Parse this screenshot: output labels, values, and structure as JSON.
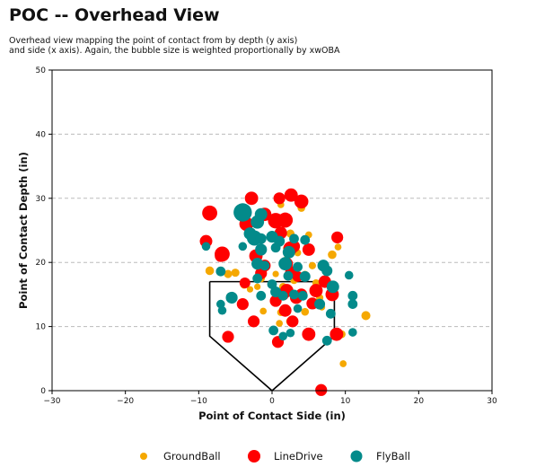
{
  "chart_data": {
    "type": "scatter",
    "title": "POC -- Overhead View",
    "subtitle_line1": "Overhead view mapping the point of contact from by depth (y axis)",
    "subtitle_line2": "and side (x axis). Again, the bubble size is weighted proportionally by xwOBA",
    "xlabel": "Point of Contact Side (in)",
    "ylabel": "Point of Contact Depth (in)",
    "xlim": [
      -30,
      30
    ],
    "ylim": [
      0,
      50
    ],
    "xticks": [
      -30,
      -20,
      -10,
      0,
      10,
      20,
      30
    ],
    "yticks": [
      0,
      10,
      20,
      30,
      40,
      50
    ],
    "grid": "horizontal-dashed",
    "legend_placement": "bottom-center",
    "home_plate": [
      [
        -8.5,
        17
      ],
      [
        8.5,
        17
      ],
      [
        8.5,
        8.5
      ],
      [
        0,
        0
      ],
      [
        -8.5,
        8.5
      ],
      [
        -8.5,
        17
      ]
    ],
    "series": [
      {
        "name": "GroundBall",
        "color": "#F5A800",
        "points": [
          [
            -8.5,
            18.7,
            0.4
          ],
          [
            -6,
            18.2,
            0.38
          ],
          [
            -5,
            18.4,
            0.38
          ],
          [
            -3.8,
            16.5,
            0.36
          ],
          [
            -3,
            15.8,
            0.3
          ],
          [
            -1.5,
            17.5,
            0.36
          ],
          [
            -1,
            19.5,
            0.38
          ],
          [
            0,
            26.5,
            0.36
          ],
          [
            1.2,
            29.0,
            0.32
          ],
          [
            2.5,
            24.5,
            0.38
          ],
          [
            4,
            28.5,
            0.36
          ],
          [
            5,
            24.3,
            0.32
          ],
          [
            2,
            22.2,
            0.34
          ],
          [
            3.5,
            21.5,
            0.32
          ],
          [
            5.5,
            19.5,
            0.34
          ],
          [
            7,
            19.5,
            0.38
          ],
          [
            8.2,
            21.2,
            0.4
          ],
          [
            9,
            22.4,
            0.32
          ],
          [
            4.5,
            18.1,
            0.36
          ],
          [
            3,
            17.2,
            0.34
          ],
          [
            1.5,
            16.2,
            0.36
          ],
          [
            0.5,
            13.8,
            0.36
          ],
          [
            -1.2,
            12.4,
            0.32
          ],
          [
            1.2,
            12.2,
            0.34
          ],
          [
            2.5,
            10.8,
            0.4
          ],
          [
            1,
            10.5,
            0.32
          ],
          [
            4.5,
            12.3,
            0.36
          ],
          [
            6.5,
            14.5,
            0.34
          ],
          [
            8.5,
            8.8,
            0.4
          ],
          [
            9.5,
            8.8,
            0.36
          ],
          [
            9.7,
            4.2,
            0.32
          ],
          [
            12.8,
            11.7,
            0.42
          ],
          [
            -1,
            27.3,
            0.36
          ],
          [
            6,
            16.8,
            0.34
          ],
          [
            2,
            20.5,
            0.32
          ],
          [
            -2,
            16.2,
            0.3
          ],
          [
            0.5,
            18.2,
            0.3
          ],
          [
            6.8,
            13.0,
            0.3
          ]
        ]
      },
      {
        "name": "LineDrive",
        "color": "#FF0000",
        "points": [
          [
            -8.5,
            27.7,
            0.7
          ],
          [
            -2.8,
            30.0,
            0.62
          ],
          [
            -3.5,
            26.0,
            0.65
          ],
          [
            0.5,
            26.5,
            0.72
          ],
          [
            1,
            30.0,
            0.55
          ],
          [
            2.6,
            30.5,
            0.62
          ],
          [
            4,
            29.5,
            0.65
          ],
          [
            1.8,
            26.6,
            0.7
          ],
          [
            -1,
            27.5,
            0.62
          ],
          [
            -9,
            23.3,
            0.58
          ],
          [
            -6.8,
            21.3,
            0.7
          ],
          [
            -7,
            21.0,
            0.55
          ],
          [
            -2.2,
            21.0,
            0.62
          ],
          [
            1.2,
            24.6,
            0.58
          ],
          [
            2.5,
            22.2,
            0.65
          ],
          [
            3,
            22.5,
            0.55
          ],
          [
            -1,
            19.5,
            0.55
          ],
          [
            2,
            19.8,
            0.58
          ],
          [
            2.6,
            18.5,
            0.55
          ],
          [
            5,
            22.0,
            0.58
          ],
          [
            8.9,
            23.9,
            0.55
          ],
          [
            -3.7,
            16.8,
            0.5
          ],
          [
            0.5,
            14.0,
            0.55
          ],
          [
            1.5,
            15.0,
            0.55
          ],
          [
            2,
            15.6,
            0.62
          ],
          [
            3.3,
            14.5,
            0.58
          ],
          [
            4,
            15.0,
            0.55
          ],
          [
            6,
            15.6,
            0.62
          ],
          [
            7.2,
            17.0,
            0.58
          ],
          [
            8.2,
            15.0,
            0.62
          ],
          [
            -4,
            13.5,
            0.55
          ],
          [
            -2.5,
            10.8,
            0.55
          ],
          [
            1.8,
            12.5,
            0.58
          ],
          [
            2.8,
            10.8,
            0.55
          ],
          [
            5.5,
            13.6,
            0.55
          ],
          [
            8.8,
            8.8,
            0.62
          ],
          [
            -6,
            8.4,
            0.55
          ],
          [
            0.8,
            7.6,
            0.55
          ],
          [
            5,
            8.8,
            0.62
          ],
          [
            6.7,
            0.1,
            0.55
          ],
          [
            3.5,
            17.8,
            0.5
          ],
          [
            -1.5,
            18.3,
            0.55
          ]
        ]
      },
      {
        "name": "FlyBall",
        "color": "#038A8A",
        "points": [
          [
            -4,
            27.8,
            0.85
          ],
          [
            -2,
            26.3,
            0.62
          ],
          [
            -1.5,
            27.5,
            0.58
          ],
          [
            -3,
            24.5,
            0.58
          ],
          [
            -2.4,
            23.8,
            0.7
          ],
          [
            -1.5,
            23.7,
            0.5
          ],
          [
            0,
            24.0,
            0.55
          ],
          [
            1,
            23.3,
            0.5
          ],
          [
            3,
            23.7,
            0.45
          ],
          [
            2.3,
            21.6,
            0.58
          ],
          [
            4.5,
            23.5,
            0.45
          ],
          [
            -4,
            22.5,
            0.4
          ],
          [
            -1.5,
            22.0,
            0.55
          ],
          [
            0.5,
            22.3,
            0.45
          ],
          [
            -9,
            22.5,
            0.4
          ],
          [
            -2,
            19.8,
            0.55
          ],
          [
            1.8,
            19.8,
            0.62
          ],
          [
            -1,
            19.5,
            0.45
          ],
          [
            3.5,
            19.3,
            0.45
          ],
          [
            7,
            19.5,
            0.55
          ],
          [
            7.5,
            18.7,
            0.5
          ],
          [
            10.5,
            18.0,
            0.4
          ],
          [
            -7,
            18.6,
            0.45
          ],
          [
            -2,
            17.5,
            0.45
          ],
          [
            0,
            16.6,
            0.45
          ],
          [
            2.2,
            17.9,
            0.45
          ],
          [
            4.5,
            17.8,
            0.5
          ],
          [
            -5.5,
            14.5,
            0.55
          ],
          [
            -7,
            13.5,
            0.4
          ],
          [
            -6.8,
            12.5,
            0.4
          ],
          [
            -1.5,
            14.8,
            0.45
          ],
          [
            0.5,
            15.4,
            0.5
          ],
          [
            1.5,
            14.8,
            0.45
          ],
          [
            3,
            15.0,
            0.45
          ],
          [
            4.2,
            14.8,
            0.45
          ],
          [
            6.5,
            13.5,
            0.5
          ],
          [
            8.3,
            16.2,
            0.58
          ],
          [
            11,
            14.8,
            0.45
          ],
          [
            11,
            13.5,
            0.45
          ],
          [
            8,
            12.0,
            0.45
          ],
          [
            3.5,
            12.8,
            0.4
          ],
          [
            0.2,
            9.4,
            0.45
          ],
          [
            1.5,
            8.5,
            0.4
          ],
          [
            2.5,
            9.0,
            0.4
          ],
          [
            7.5,
            7.8,
            0.45
          ],
          [
            11,
            9.1,
            0.4
          ]
        ]
      }
    ]
  }
}
